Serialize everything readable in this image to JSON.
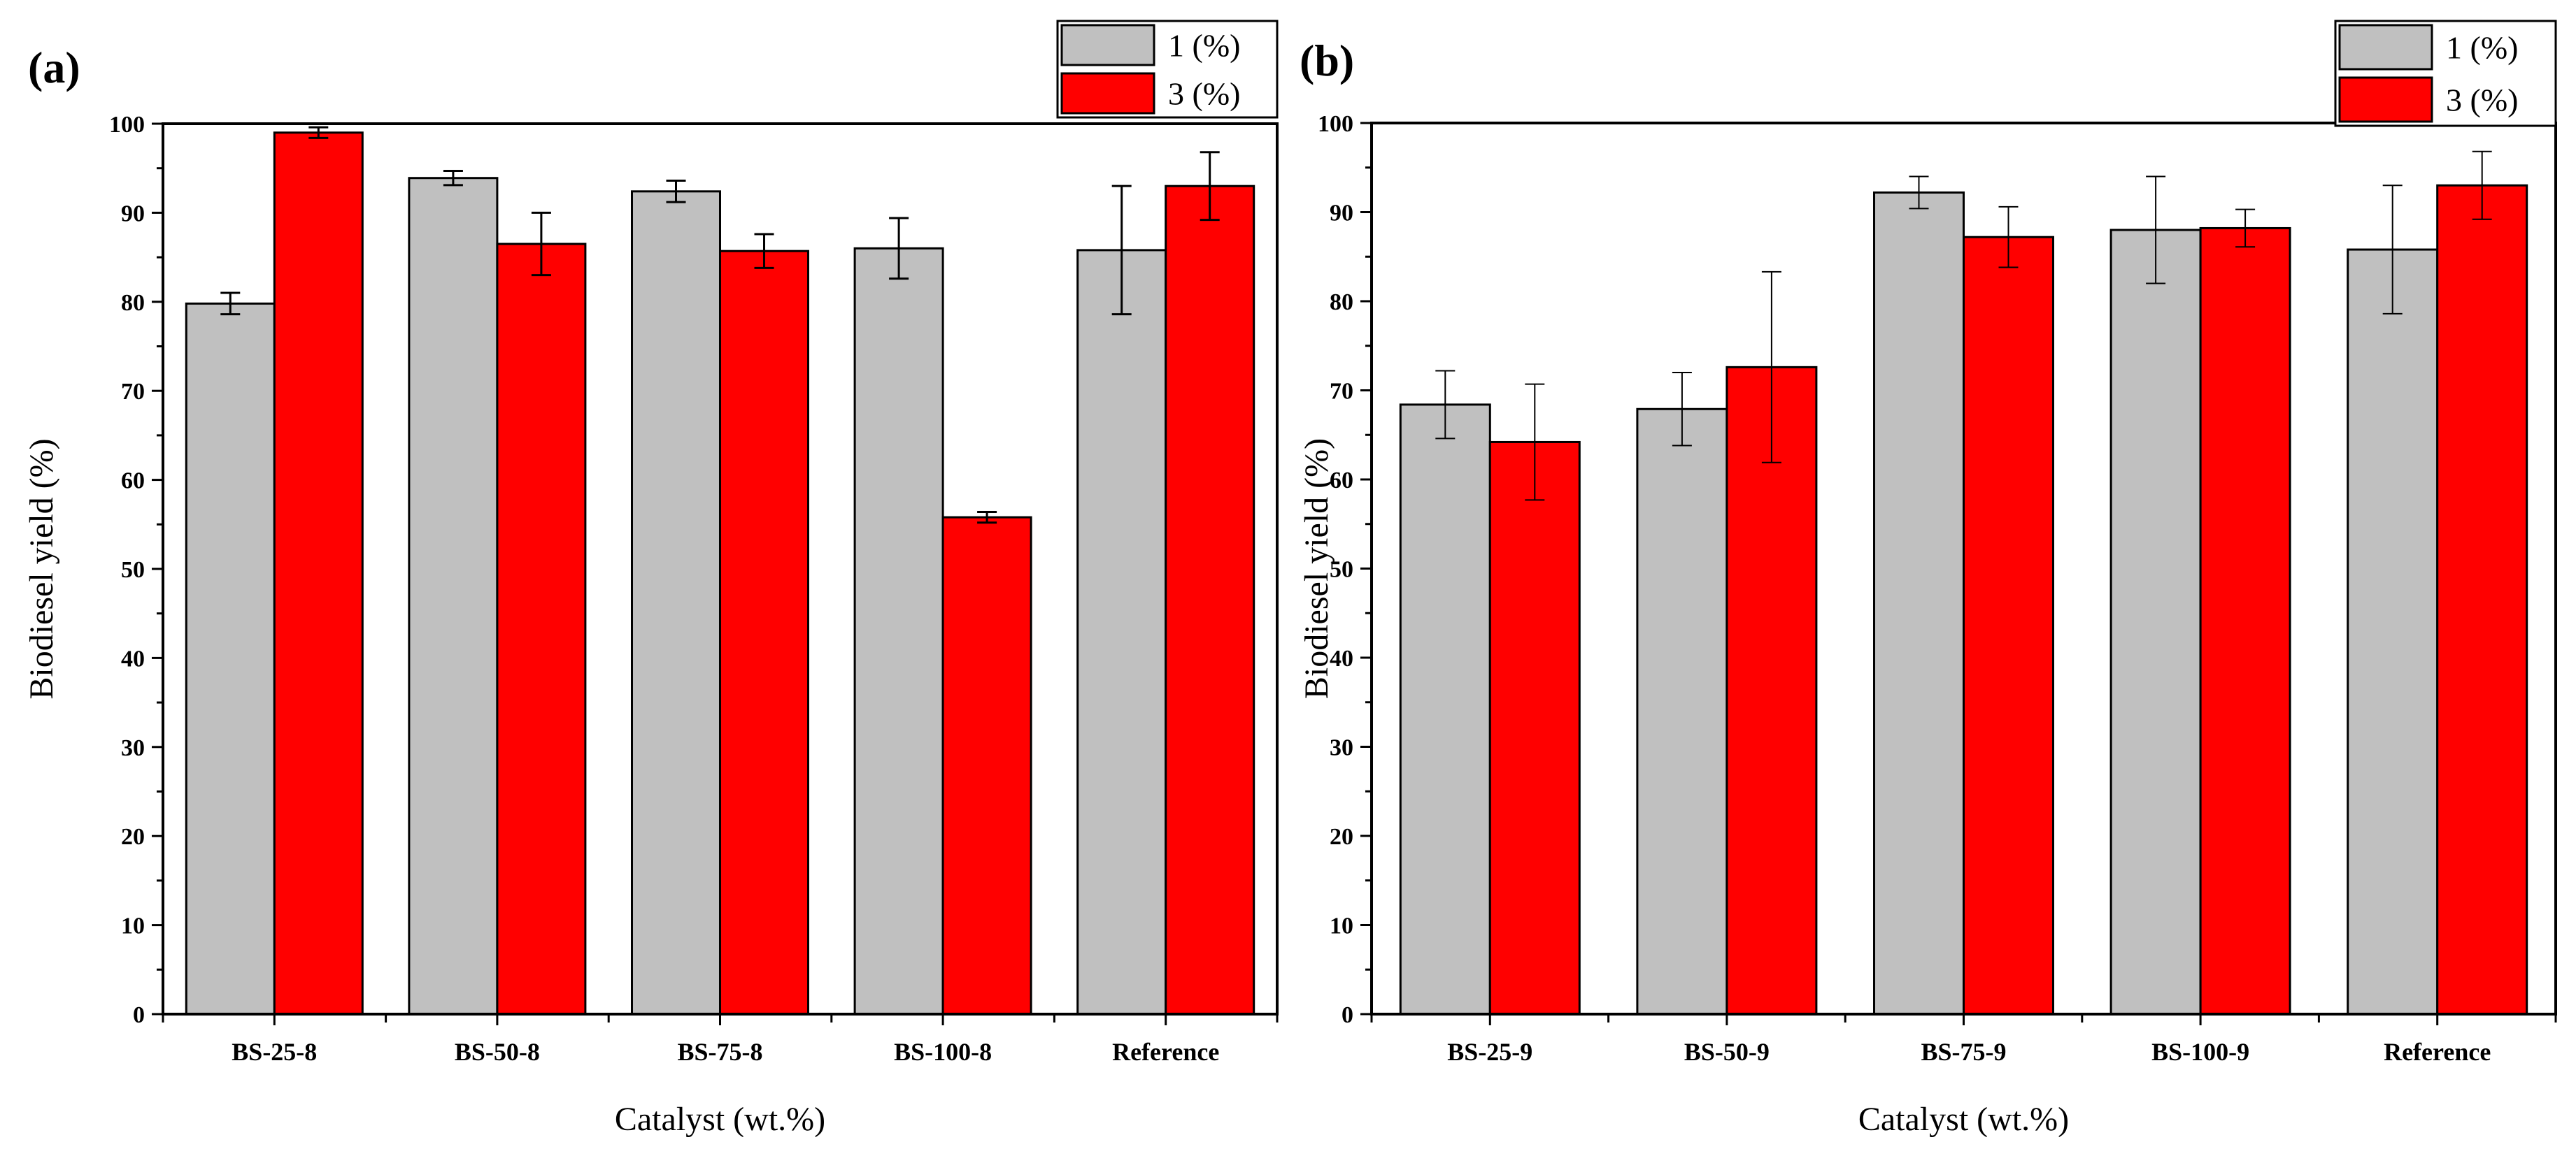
{
  "chart_data": [
    {
      "type": "bar",
      "panel_label": "(a)",
      "categories": [
        "BS-25-8",
        "BS-50-8",
        "BS-75-8",
        "BS-100-8",
        "Reference"
      ],
      "series": [
        {
          "name": "1 (%)",
          "color": "#c0c0c0",
          "values": [
            79.8,
            93.9,
            92.4,
            86.0,
            85.8
          ],
          "errors": [
            1.2,
            0.8,
            1.2,
            3.4,
            7.2
          ]
        },
        {
          "name": "3 (%)",
          "color": "#ff0000",
          "values": [
            99.0,
            86.5,
            85.7,
            55.8,
            93.0
          ],
          "errors": [
            0.6,
            3.5,
            1.9,
            0.6,
            3.8
          ]
        }
      ],
      "xlabel": "Catalyst (wt.%)",
      "ylabel": "Biodiesel yield (%)",
      "ylim": [
        0,
        100
      ],
      "yticks": [
        "0",
        "10",
        "20",
        "30",
        "40",
        "50",
        "60",
        "70",
        "80",
        "90",
        "100"
      ],
      "legend_position": "top-right"
    },
    {
      "type": "bar",
      "panel_label": "(b)",
      "categories": [
        "BS-25-9",
        "BS-50-9",
        "BS-75-9",
        "BS-100-9",
        "Reference"
      ],
      "series": [
        {
          "name": "1 (%)",
          "color": "#c0c0c0",
          "values": [
            68.4,
            67.9,
            92.2,
            88.0,
            85.8
          ],
          "errors": [
            3.8,
            4.1,
            1.8,
            6.0,
            7.2
          ]
        },
        {
          "name": "3 (%)",
          "color": "#ff0000",
          "values": [
            64.2,
            72.6,
            87.2,
            88.2,
            93.0
          ],
          "errors": [
            6.5,
            10.7,
            3.4,
            2.1,
            3.8
          ]
        }
      ],
      "xlabel": "Catalyst (wt.%)",
      "ylabel": "Biodiesel yield (%)",
      "ylim": [
        0,
        100
      ],
      "yticks": [
        "0",
        "10",
        "20",
        "30",
        "40",
        "50",
        "60",
        "70",
        "80",
        "90",
        "100"
      ],
      "legend_position": "top-right"
    }
  ]
}
